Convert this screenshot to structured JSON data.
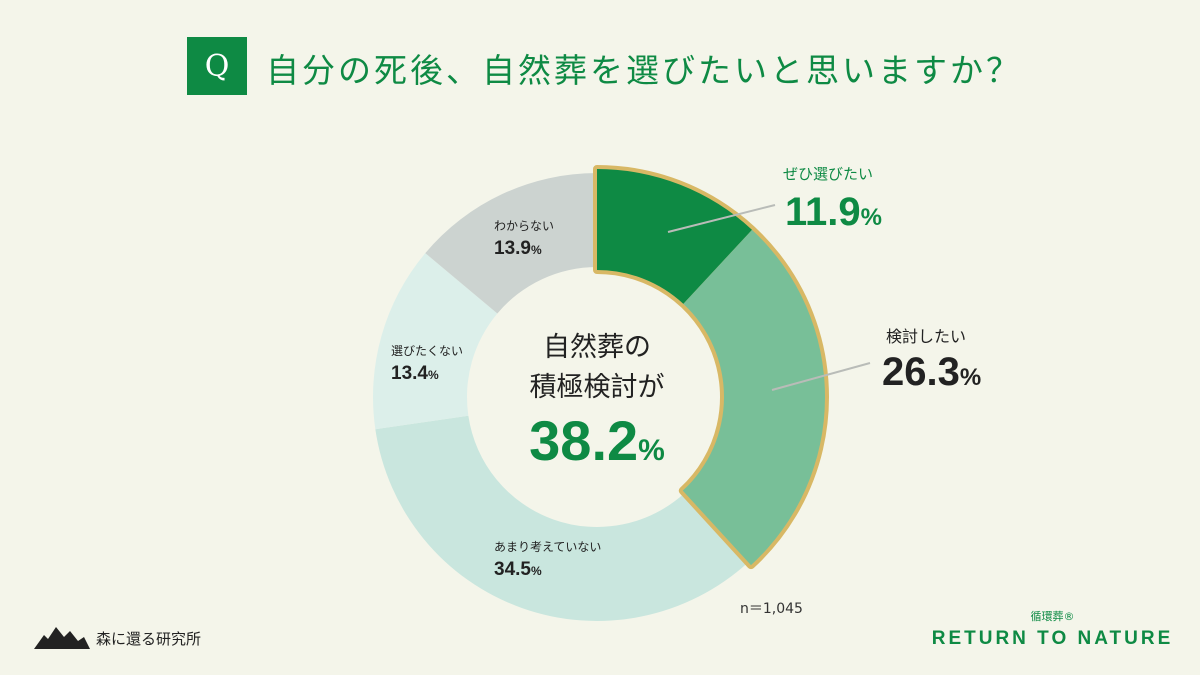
{
  "header": {
    "q_badge": "Q",
    "title": "自分の死後、自然葬を選びたいと思いますか？"
  },
  "chart_data": {
    "type": "pie",
    "donut": true,
    "categories": [
      "ぜひ選びたい",
      "検討したい",
      "あまり考えていない",
      "選びたくない",
      "わからない"
    ],
    "values": [
      11.9,
      26.3,
      34.5,
      13.4,
      13.9
    ],
    "value_labels": [
      "11.9",
      "26.3",
      "34.5",
      "13.4",
      "13.9"
    ],
    "unit": "%",
    "colors": [
      "#0e8a44",
      "#78bf98",
      "#c9e6de",
      "#dcefea",
      "#ccd3d0"
    ],
    "highlight_color": "#d8b865",
    "highlighted": [
      0,
      1
    ],
    "center_text": [
      "自然葬の",
      "積極検討が"
    ],
    "center_value": "38.2",
    "sample": "n＝1,045"
  },
  "footer": {
    "left_logo": "森に還る研究所",
    "right_sub": "循環葬®",
    "right_main": "RETURN TO NATURE"
  }
}
